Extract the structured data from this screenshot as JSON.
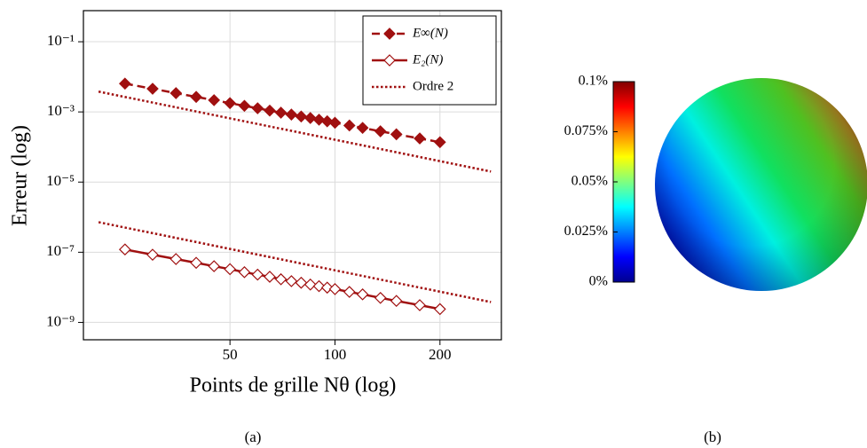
{
  "chart_data": [
    {
      "type": "line",
      "x_label": "Points de grille Nθ (log)",
      "y_label": "Erreur (log)",
      "xscale": "log",
      "yscale": "log",
      "grid": true,
      "legend": "upper right",
      "xlim": [
        19,
        300
      ],
      "ylim": [
        3.2e-10,
        0.77
      ],
      "xticks": [
        50,
        100,
        200
      ],
      "yticks": [
        {
          "value": 0.1,
          "label": "10⁻¹"
        },
        {
          "value": 0.001,
          "label": "10⁻³"
        },
        {
          "value": 1e-05,
          "label": "10⁻⁵"
        },
        {
          "value": 1e-07,
          "label": "10⁻⁷"
        },
        {
          "value": 1e-09,
          "label": "10⁻⁹"
        }
      ],
      "series": [
        {
          "name": "E∞(N)",
          "color": "#a01010",
          "line_style": "dashed",
          "marker": "diamond-filled",
          "x": [
            25,
            30,
            35,
            40,
            45,
            50,
            55,
            60,
            65,
            70,
            75,
            80,
            85,
            90,
            95,
            100,
            110,
            120,
            135,
            150,
            175,
            200
          ],
          "values": [
            0.0064,
            0.00457,
            0.00343,
            0.00268,
            0.00216,
            0.00178,
            0.00149,
            0.00127,
            0.00109,
            0.00095,
            0.00084,
            0.00074,
            0.00067,
            0.0006,
            0.00054,
            0.00049,
            0.00041,
            0.00035,
            0.00028,
            0.00023,
            0.000175,
            0.000137
          ]
        },
        {
          "name": "E₂(N)",
          "color": "#a01010",
          "line_style": "solid",
          "marker": "diamond-open",
          "x": [
            25,
            30,
            35,
            40,
            45,
            50,
            55,
            60,
            65,
            70,
            75,
            80,
            85,
            90,
            95,
            100,
            110,
            120,
            135,
            150,
            175,
            200
          ],
          "values": [
            1.2e-07,
            8.5e-08,
            6.4e-08,
            5e-08,
            4e-08,
            3.3e-08,
            2.7e-08,
            2.3e-08,
            2e-08,
            1.7e-08,
            1.5e-08,
            1.35e-08,
            1.2e-08,
            1.08e-08,
            9.8e-09,
            8.9e-09,
            7.4e-09,
            6.3e-09,
            5e-09,
            4.1e-09,
            3.1e-09,
            2.4e-09
          ]
        },
        {
          "name": "Ordre 2",
          "color": "#a01010",
          "line_style": "dotted",
          "marker": "none",
          "x": [
            21,
            280,
            null,
            21,
            280
          ],
          "values": [
            0.0038,
            2e-05,
            null,
            7.2e-07,
            3.8e-09
          ]
        }
      ]
    },
    {
      "type": "colorbar",
      "clim": [
        0,
        0.1
      ],
      "ticks": [
        {
          "value": 0,
          "label": "0%"
        },
        {
          "value": 0.025,
          "label": "0.025%"
        },
        {
          "value": 0.05,
          "label": "0.05%"
        },
        {
          "value": 0.075,
          "label": "0.075%"
        },
        {
          "value": 0.1,
          "label": "0.1%"
        }
      ]
    }
  ],
  "captions": [
    "(a)",
    "(b)"
  ]
}
